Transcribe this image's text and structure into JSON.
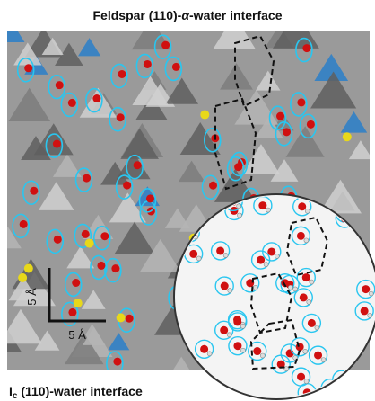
{
  "header": {
    "title": {
      "before": "Feldspar (110)-",
      "symbol": "α",
      "after": "-water interface"
    }
  },
  "scale_bar": {
    "vertical_label": "5 Å",
    "horizontal_label": "5 Å"
  },
  "footer": {
    "title": {
      "main": "I",
      "subscript": "c",
      "after": " (110)-water interface"
    }
  }
}
